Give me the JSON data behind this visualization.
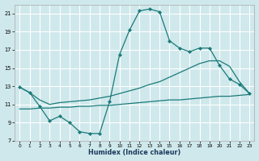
{
  "xlabel": "Humidex (Indice chaleur)",
  "bg_color": "#cfe8eb",
  "grid_color": "#ffffff",
  "line_color": "#1a7a7a",
  "xlim": [
    -0.5,
    23.5
  ],
  "ylim": [
    7,
    22
  ],
  "xticks": [
    0,
    1,
    2,
    3,
    4,
    5,
    6,
    7,
    8,
    9,
    10,
    11,
    12,
    13,
    14,
    15,
    16,
    17,
    18,
    19,
    20,
    21,
    22,
    23
  ],
  "yticks": [
    7,
    9,
    11,
    13,
    15,
    17,
    19,
    21
  ],
  "line1_x": [
    0,
    1,
    2,
    3,
    4,
    5,
    6,
    7,
    8,
    9,
    10,
    11,
    12,
    13,
    14,
    15,
    16,
    17,
    18,
    19,
    20,
    21,
    22,
    23
  ],
  "line1_y": [
    12.9,
    12.3,
    10.8,
    9.2,
    9.7,
    9.0,
    8.0,
    7.8,
    7.8,
    11.3,
    16.5,
    19.2,
    21.3,
    21.5,
    21.2,
    18.0,
    17.2,
    16.8,
    17.2,
    17.2,
    15.3,
    13.8,
    13.2,
    12.2
  ],
  "line2_x": [
    0,
    1,
    2,
    3,
    4,
    5,
    6,
    7,
    8,
    9,
    10,
    11,
    12,
    13,
    14,
    15,
    16,
    17,
    18,
    19,
    20,
    21,
    22,
    23
  ],
  "line2_y": [
    12.9,
    12.3,
    11.5,
    11.0,
    11.2,
    11.3,
    11.4,
    11.5,
    11.7,
    11.9,
    12.2,
    12.5,
    12.8,
    13.2,
    13.5,
    14.0,
    14.5,
    15.0,
    15.5,
    15.8,
    15.8,
    15.2,
    13.5,
    12.2
  ],
  "line3_x": [
    0,
    1,
    2,
    3,
    4,
    5,
    6,
    7,
    8,
    9,
    10,
    11,
    12,
    13,
    14,
    15,
    16,
    17,
    18,
    19,
    20,
    21,
    22,
    23
  ],
  "line3_y": [
    10.5,
    10.5,
    10.6,
    10.6,
    10.7,
    10.7,
    10.8,
    10.8,
    10.9,
    10.9,
    11.0,
    11.1,
    11.2,
    11.3,
    11.4,
    11.5,
    11.5,
    11.6,
    11.7,
    11.8,
    11.9,
    11.9,
    12.0,
    12.1
  ]
}
